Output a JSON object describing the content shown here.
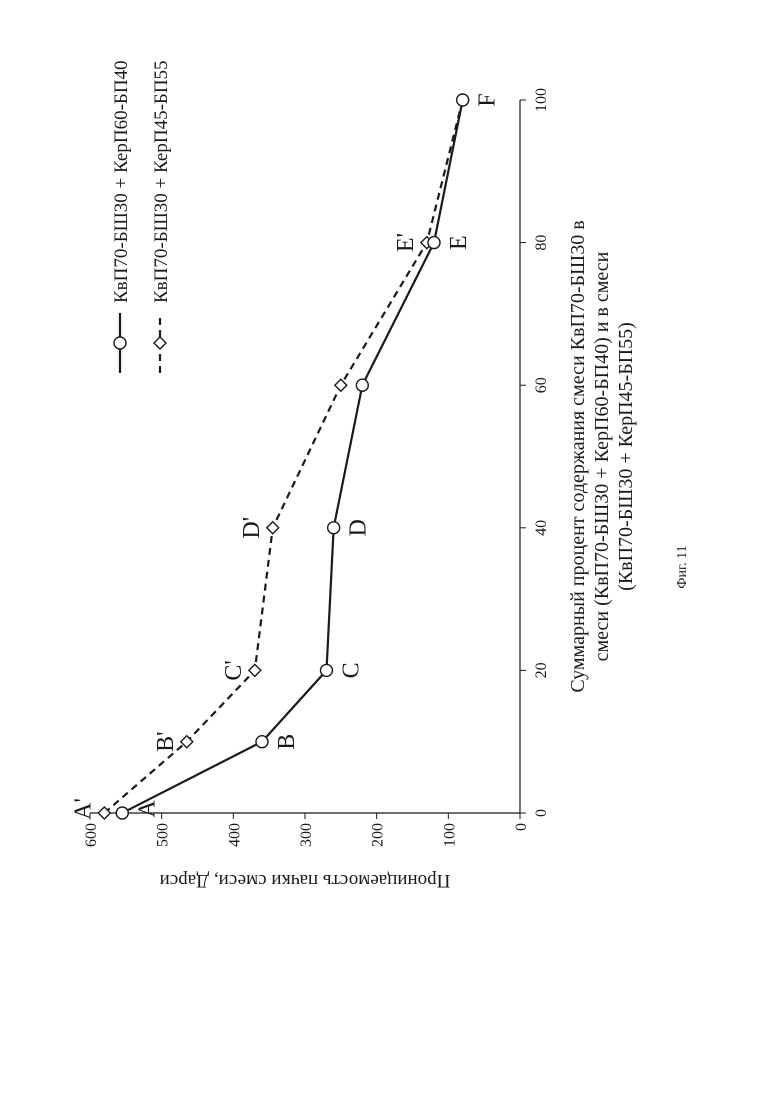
{
  "chart_data": {
    "type": "line",
    "xlabel": "Суммарный процент содержания смеси КвП70-БШ30 в смеси (КвП70-БШ30 + КерП60-БП40) и в смеси (КвП70-БШ30 + КерП45-БП55)",
    "ylabel": "Проницаемость пачки смеси, Дарси",
    "xlim": [
      0,
      100
    ],
    "ylim": [
      0,
      600
    ],
    "xticks": [
      "0",
      "20",
      "40",
      "60",
      "80",
      "100"
    ],
    "yticks": [
      "0",
      "100",
      "200",
      "300",
      "400",
      "500",
      "600"
    ],
    "grid": false,
    "legend_position": "top-right",
    "series": [
      {
        "name": "КвП70-БШ30 + КерП45-БП55",
        "style": "dashed",
        "marker": "diamond",
        "x": [
          0,
          10,
          20,
          40,
          60,
          80,
          100
        ],
        "y": [
          580,
          465,
          370,
          345,
          250,
          130,
          80
        ],
        "labels": [
          "A'",
          "B'",
          "C'",
          "D'",
          "",
          "E'",
          ""
        ]
      },
      {
        "name": "КвП70-БШ30 + КерП60-БП40",
        "style": "solid",
        "marker": "circle",
        "x": [
          0,
          10,
          20,
          40,
          60,
          80,
          100
        ],
        "y": [
          555,
          360,
          270,
          260,
          220,
          120,
          80
        ],
        "labels": [
          "A",
          "B",
          "C",
          "D",
          "",
          "E",
          "F"
        ]
      }
    ]
  },
  "caption": "Фиг. 11",
  "colors": {
    "ink": "#1a1a1a",
    "background": "#ffffff"
  }
}
